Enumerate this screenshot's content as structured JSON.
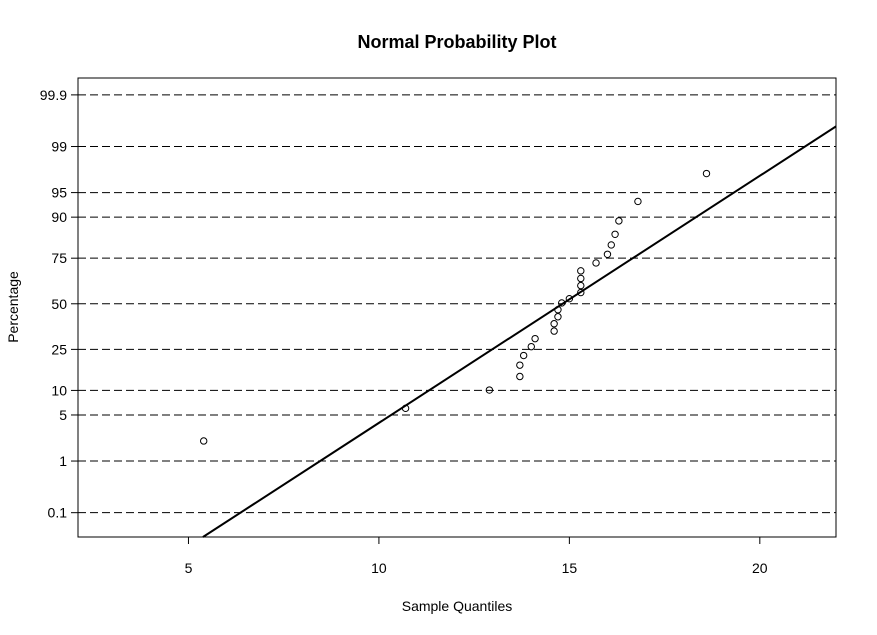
{
  "chart_data": {
    "type": "scatter",
    "title": "Normal Probability Plot",
    "xlabel": "Sample Quantiles",
    "ylabel": "Percentage",
    "xlim": [
      2.1,
      22.0
    ],
    "x_ticks": [
      5,
      10,
      15,
      20
    ],
    "y_ticks": [
      0.1,
      1,
      5,
      10,
      25,
      50,
      75,
      90,
      95,
      99,
      99.9
    ],
    "y_tick_labels": [
      "0.1",
      "1",
      "5",
      "10",
      "25",
      "50",
      "75",
      "90",
      "95",
      "99",
      "99.9"
    ],
    "y_scale": "normal-probability",
    "grid": "horizontal-dashed",
    "reference_line": {
      "x_at_50_percent": 14.82,
      "slope_per_unit": 0.3655
    },
    "points": [
      {
        "x": 5.4,
        "y": 2.12
      },
      {
        "x": 10.7,
        "y": 6.1
      },
      {
        "x": 12.9,
        "y": 10.1
      },
      {
        "x": 13.7,
        "y": 14.1
      },
      {
        "x": 13.7,
        "y": 18.2
      },
      {
        "x": 13.8,
        "y": 22.2
      },
      {
        "x": 14.0,
        "y": 26.3
      },
      {
        "x": 14.1,
        "y": 30.3
      },
      {
        "x": 14.6,
        "y": 34.3
      },
      {
        "x": 14.6,
        "y": 38.4
      },
      {
        "x": 14.7,
        "y": 42.4
      },
      {
        "x": 14.7,
        "y": 46.5
      },
      {
        "x": 14.8,
        "y": 50.5
      },
      {
        "x": 15.0,
        "y": 53.0
      },
      {
        "x": 15.3,
        "y": 56.6
      },
      {
        "x": 15.3,
        "y": 60.6
      },
      {
        "x": 15.3,
        "y": 64.6
      },
      {
        "x": 15.3,
        "y": 68.7
      },
      {
        "x": 15.7,
        "y": 72.7
      },
      {
        "x": 16.0,
        "y": 76.8
      },
      {
        "x": 16.1,
        "y": 80.8
      },
      {
        "x": 16.2,
        "y": 84.8
      },
      {
        "x": 16.3,
        "y": 89.0
      },
      {
        "x": 16.8,
        "y": 93.5
      },
      {
        "x": 18.6,
        "y": 97.3
      }
    ]
  }
}
